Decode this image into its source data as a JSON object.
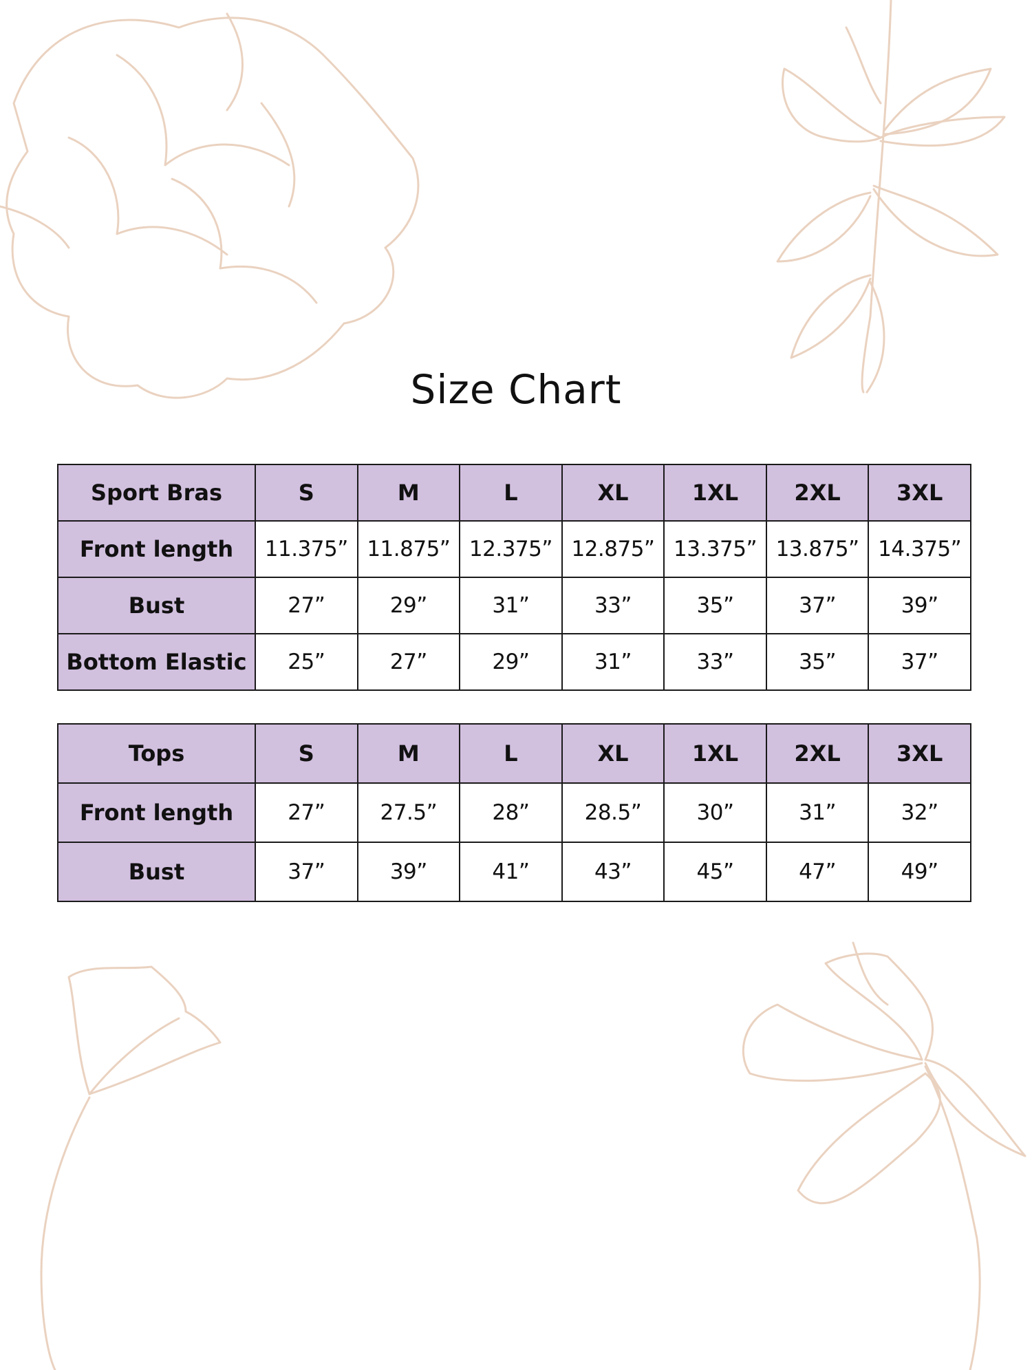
{
  "title": "Size Chart",
  "decoration_color": "#ead2c0",
  "header_color": "#d2c0df",
  "tables": [
    {
      "header": [
        "Sport Bras",
        "S",
        "M",
        "L",
        "XL",
        "1XL",
        "2XL",
        "3XL"
      ],
      "rows": [
        {
          "label": "Front length",
          "values": [
            "11.375”",
            "11.875”",
            "12.375”",
            "12.875”",
            "13.375”",
            "13.875”",
            "14.375”"
          ]
        },
        {
          "label": "Bust",
          "values": [
            "27”",
            "29”",
            "31”",
            "33”",
            "35”",
            "37”",
            "39”"
          ]
        },
        {
          "label": "Bottom Elastic",
          "values": [
            "25”",
            "27”",
            "29”",
            "31”",
            "33”",
            "35”",
            "37”"
          ]
        }
      ]
    },
    {
      "header": [
        "Tops",
        "S",
        "M",
        "L",
        "XL",
        "1XL",
        "2XL",
        "3XL"
      ],
      "rows": [
        {
          "label": "Front length",
          "values": [
            "27”",
            "27.5”",
            "28”",
            "28.5”",
            "30”",
            "31”",
            "32”"
          ]
        },
        {
          "label": "Bust",
          "values": [
            "37”",
            "39”",
            "41”",
            "43”",
            "45”",
            "47”",
            "49”"
          ]
        }
      ]
    }
  ]
}
